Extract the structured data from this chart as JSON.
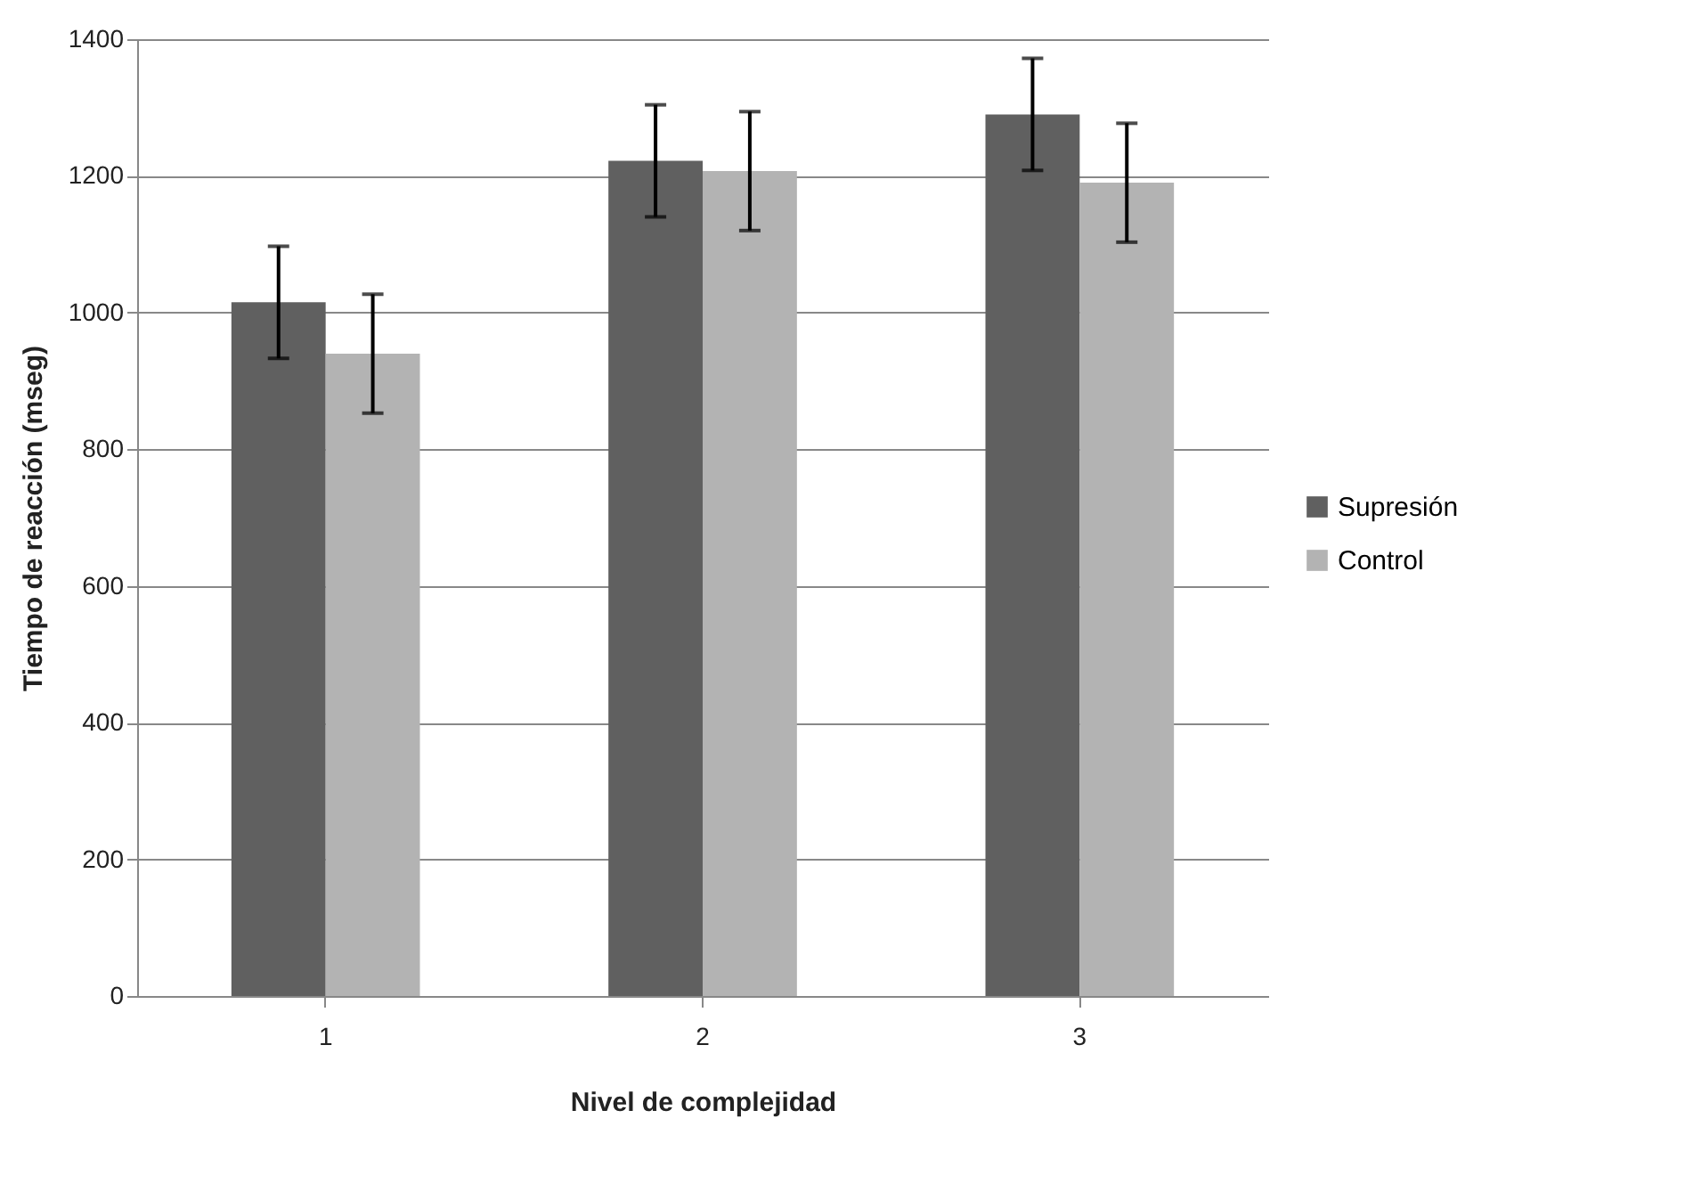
{
  "chart_data": {
    "type": "bar",
    "xlabel": "Nivel de complejidad",
    "ylabel": "Tiempo de reacción (mseg)",
    "categories": [
      "1",
      "2",
      "3"
    ],
    "series": [
      {
        "name": "Supresión",
        "color": "#606060",
        "values": [
          1015,
          1222,
          1290
        ],
        "errors": [
          82,
          82,
          82
        ]
      },
      {
        "name": "Control",
        "color": "#b3b3b3",
        "values": [
          940,
          1207,
          1190
        ],
        "errors": [
          87,
          87,
          87
        ]
      }
    ],
    "ylim": [
      0,
      1400
    ],
    "yticks": [
      0,
      200,
      400,
      600,
      800,
      1000,
      1200,
      1400
    ],
    "grid": "y",
    "legend": "right"
  }
}
